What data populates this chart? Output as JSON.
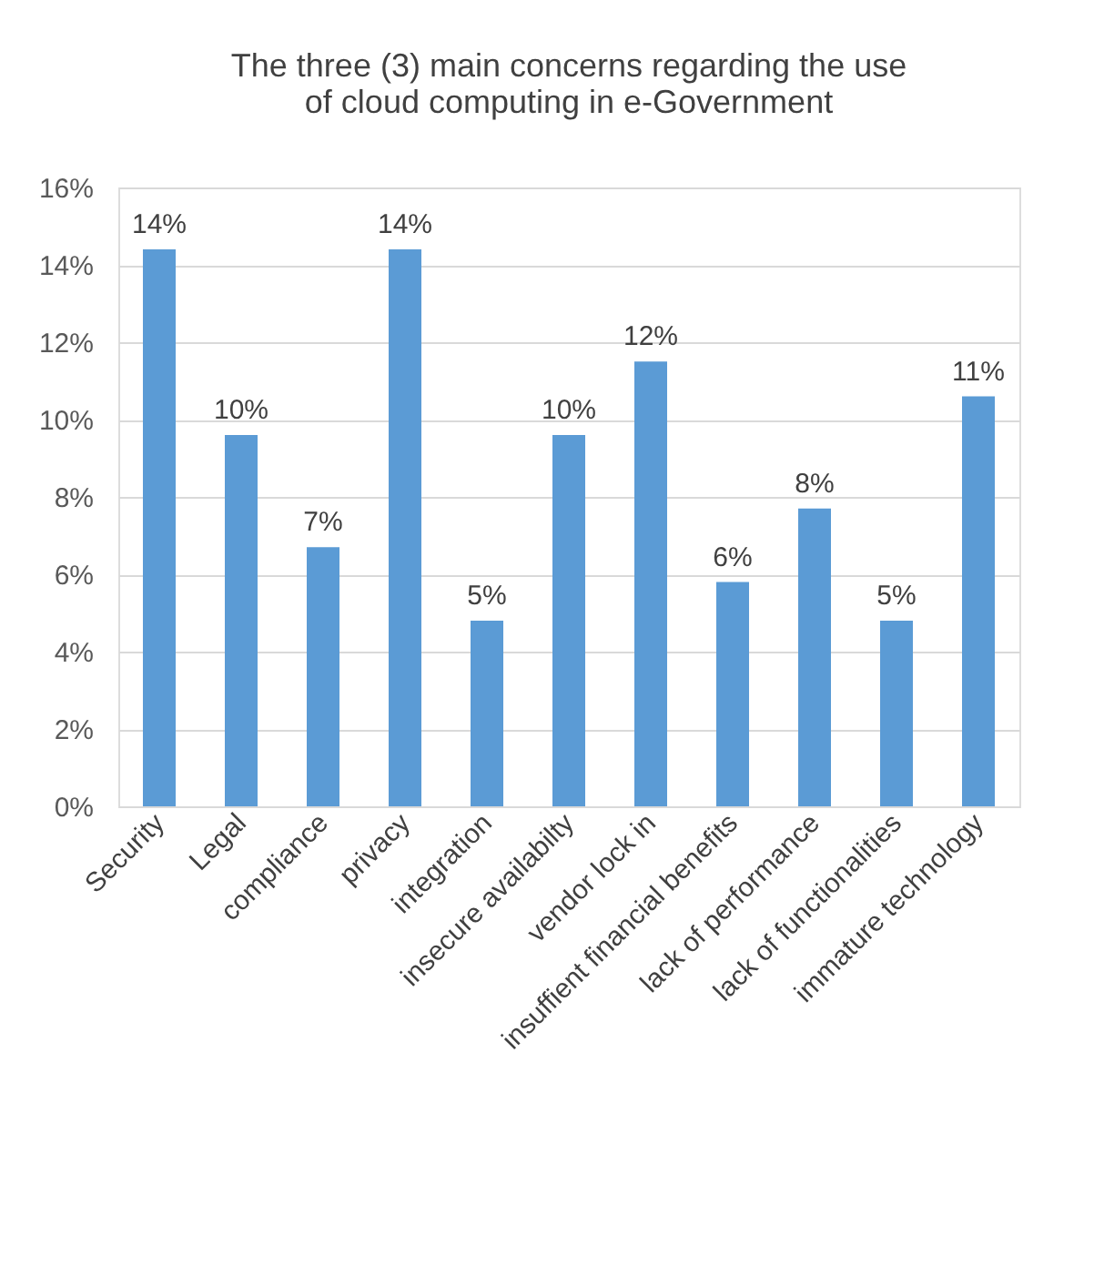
{
  "chart_data": {
    "type": "bar",
    "title": [
      "The three (3) main concerns regarding the use",
      "of cloud computing in e-Government"
    ],
    "categories": [
      "Security",
      "Legal",
      "compliance",
      "privacy",
      "integration",
      "insecure availabilty",
      "vendor lock in",
      "insuffient financial benefits",
      "lack of performance",
      "lack of functionalities",
      "immature technology"
    ],
    "values": [
      14.4,
      9.6,
      6.7,
      14.4,
      4.8,
      9.6,
      11.5,
      5.8,
      7.7,
      4.8,
      10.6
    ],
    "value_labels": [
      "14%",
      "10%",
      "7%",
      "14%",
      "5%",
      "10%",
      "12%",
      "6%",
      "8%",
      "5%",
      "11%"
    ],
    "color": "#5b9bd5",
    "ylim": [
      0,
      16
    ],
    "yticks": [
      {
        "value": 0,
        "label": "0%"
      },
      {
        "value": 2,
        "label": "2%"
      },
      {
        "value": 4,
        "label": "4%"
      },
      {
        "value": 6,
        "label": "6%"
      },
      {
        "value": 8,
        "label": "8%"
      },
      {
        "value": 10,
        "label": "10%"
      },
      {
        "value": 12,
        "label": "12%"
      },
      {
        "value": 14,
        "label": "14%"
      },
      {
        "value": 16,
        "label": "16%"
      }
    ],
    "grid": "y"
  }
}
